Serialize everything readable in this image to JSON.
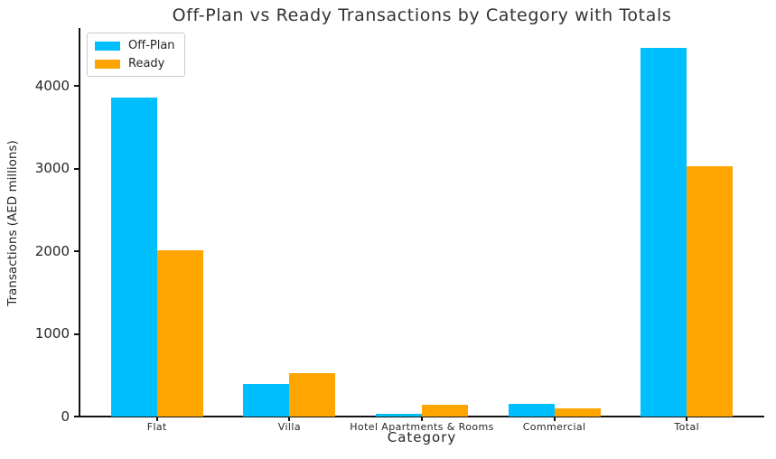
{
  "chart_data": {
    "type": "bar",
    "title": "Off-Plan vs Ready Transactions by Category with Totals",
    "xlabel": "Category",
    "ylabel": "Transactions (AED millions)",
    "categories": [
      "Flat",
      "Villa",
      "Hotel Apartments & Rooms",
      "Commercial",
      "Total"
    ],
    "series": [
      {
        "name": "Off-Plan",
        "color": "#00BFFF",
        "values": [
          3860,
          390,
          30,
          150,
          4460
        ]
      },
      {
        "name": "Ready",
        "color": "#FFA500",
        "values": [
          2010,
          520,
          140,
          100,
          3030
        ]
      }
    ],
    "ylim": [
      0,
      4700
    ],
    "yticks": [
      0,
      1000,
      2000,
      3000,
      4000
    ],
    "grid": false,
    "legend_position": "upper-left"
  }
}
